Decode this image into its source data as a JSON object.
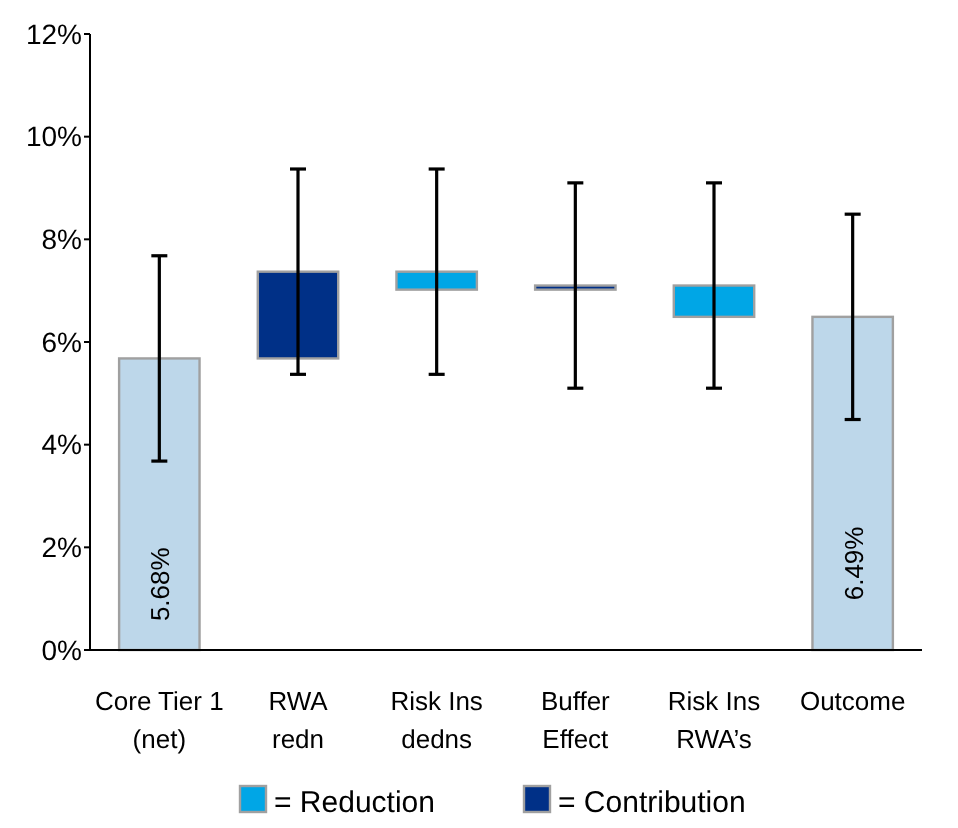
{
  "chart_data": {
    "type": "bar",
    "categories": [
      "Core Tier 1\n(net)",
      "RWA\nredn",
      "Risk Ins\ndedns",
      "Buffer\nEffect",
      "Risk Ins\nRWA’s",
      "Outcome"
    ],
    "series": [
      {
        "color": "#bdd7ea",
        "values": [
          5.68,
          null,
          null,
          null,
          null,
          6.49
        ],
        "errors": [
          2,
          null,
          null,
          null,
          null,
          2
        ],
        "value_labels": [
          "5.68%",
          null,
          null,
          null,
          null,
          "6.49%"
        ]
      },
      {
        "name": "= Reduction",
        "color": "#00a6e6",
        "base": [
          null,
          null,
          7.02,
          null,
          6.49,
          null
        ],
        "values": [
          null,
          null,
          0.35,
          null,
          0.61,
          null
        ],
        "errors": [
          null,
          null,
          2,
          null,
          2,
          null
        ]
      },
      {
        "name": "= Contribution",
        "color": "#003087",
        "base": [
          null,
          5.68,
          null,
          7.02,
          null,
          null
        ],
        "values": [
          null,
          1.69,
          null,
          0.08,
          null,
          null
        ],
        "errors": [
          null,
          2,
          null,
          2,
          null,
          null
        ]
      }
    ],
    "ylim": [
      0,
      12
    ],
    "yticks": [
      {
        "value": 0,
        "label": "0%"
      },
      {
        "value": 2,
        "label": "2%"
      },
      {
        "value": 4,
        "label": "4%"
      },
      {
        "value": 6,
        "label": "6%"
      },
      {
        "value": 8,
        "label": "8%"
      },
      {
        "value": 10,
        "label": "10%"
      },
      {
        "value": 12,
        "label": "12%"
      }
    ],
    "grid": false,
    "legend": "bottom"
  }
}
